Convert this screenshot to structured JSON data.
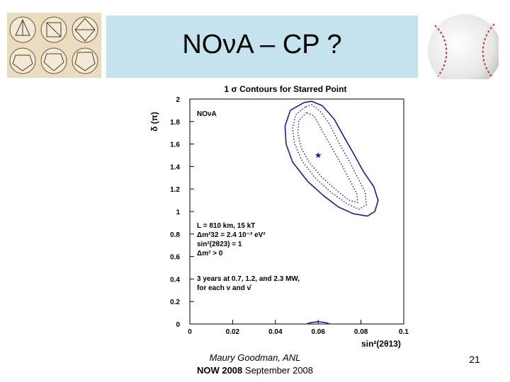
{
  "slide": {
    "title": "NOνA – CP ?",
    "author": "Maury Goodman, ANL",
    "conference_bold": "NOW 2008",
    "conference_rest": " September 2008",
    "page_number": "21"
  },
  "chart_data": {
    "type": "contour",
    "title": "1 σ Contours for Starred Point",
    "xlabel": "sin²(2θ13)",
    "ylabel": "δ (π)",
    "xlim": [
      0,
      0.1
    ],
    "ylim": [
      0,
      2
    ],
    "xticks": [
      "0",
      "0.02",
      "0.04",
      "0.06",
      "0.08",
      "0.1"
    ],
    "yticks": [
      "0",
      "0.2",
      "0.4",
      "0.6",
      "0.8",
      "1",
      "1.2",
      "1.4",
      "1.6",
      "1.8",
      "2"
    ],
    "experiment_label": "NOνA",
    "annotations": [
      "L = 810 km, 15 kT",
      "Δm²32 = 2.4 10⁻³ eV²",
      "sin²(2θ23) = 1",
      "Δm² > 0",
      "3 years at 0.7, 1.2, and 2.3 MW,",
      "for each ν and ν̄"
    ],
    "starred_point": {
      "x": 0.06,
      "y": 1.5
    },
    "colors": {
      "contour": "#1a1aa8"
    },
    "series": [
      {
        "style": "solid",
        "x": [
          0.0535,
          0.047,
          0.0445,
          0.045,
          0.048,
          0.055,
          0.0625,
          0.0695,
          0.0765,
          0.083,
          0.0865,
          0.088,
          0.086,
          0.081,
          0.077,
          0.0725,
          0.0675,
          0.062,
          0.057,
          0.0535
        ],
        "y": [
          1.97,
          1.9,
          1.76,
          1.6,
          1.44,
          1.27,
          1.14,
          1.04,
          0.98,
          0.96,
          1.0,
          1.1,
          1.22,
          1.36,
          1.5,
          1.65,
          1.82,
          1.94,
          1.98,
          1.97
        ]
      },
      {
        "style": "dotted",
        "x": [
          0.054,
          0.0495,
          0.048,
          0.049,
          0.0525,
          0.0585,
          0.066,
          0.0735,
          0.079,
          0.0825,
          0.082,
          0.0785,
          0.0745,
          0.07,
          0.0655,
          0.061,
          0.057,
          0.054
        ],
        "y": [
          1.93,
          1.86,
          1.74,
          1.6,
          1.45,
          1.3,
          1.17,
          1.07,
          1.02,
          1.06,
          1.17,
          1.3,
          1.45,
          1.6,
          1.77,
          1.89,
          1.95,
          1.93
        ]
      },
      {
        "style": "dotted",
        "x": [
          0.0545,
          0.051,
          0.0505,
          0.052,
          0.056,
          0.062,
          0.0685,
          0.0745,
          0.0785,
          0.078,
          0.0745,
          0.0705,
          0.066,
          0.0615,
          0.058,
          0.0545
        ],
        "y": [
          1.88,
          1.81,
          1.7,
          1.57,
          1.43,
          1.3,
          1.19,
          1.1,
          1.08,
          1.16,
          1.29,
          1.43,
          1.58,
          1.73,
          1.85,
          1.88
        ]
      },
      {
        "style": "solid",
        "x": [
          0.0545,
          0.0565,
          0.06,
          0.0635,
          0.0655
        ],
        "y": [
          0.0,
          0.012,
          0.02,
          0.012,
          0.0
        ]
      }
    ]
  }
}
